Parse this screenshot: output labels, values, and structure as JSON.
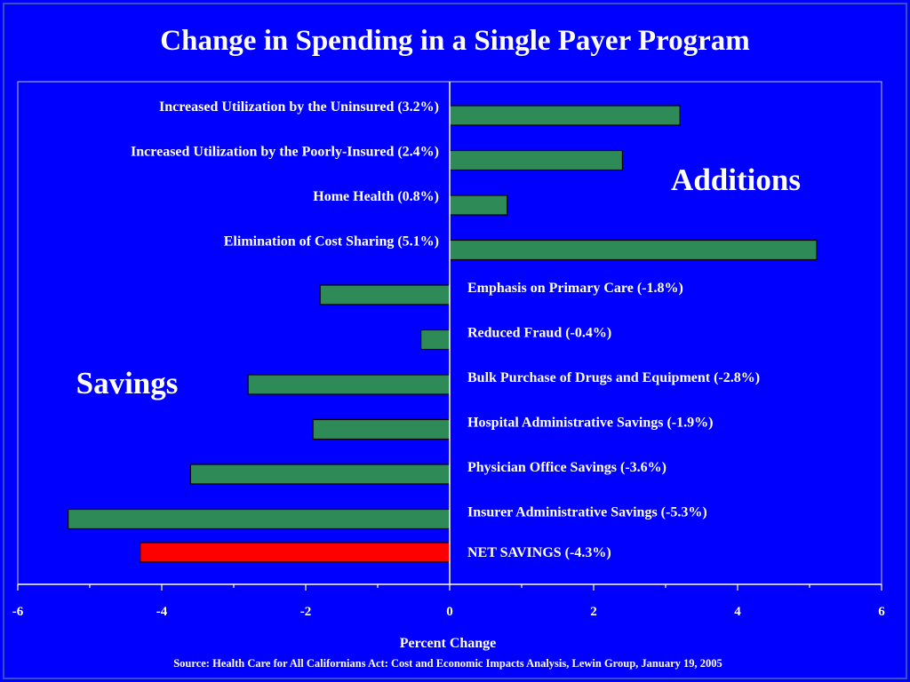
{
  "slide": {
    "source": "Source: Health Care for All Californians Act: Cost and Economic Impacts Analysis, Lewin Group, January 19, 2005"
  },
  "chart_data": {
    "type": "bar",
    "orientation": "horizontal",
    "title": "Change in Spending in a Single Payer Program",
    "xlabel": "Percent Change",
    "ylabel": "",
    "xlim": [
      -6,
      6
    ],
    "xticks": [
      -6,
      -4,
      -2,
      0,
      2,
      4,
      6
    ],
    "grid": false,
    "annotations": [
      "Additions",
      "Savings"
    ],
    "categories": [
      "Increased Utilization by the Uninsured (3.2%)",
      "Increased Utilization by the Poorly-Insured (2.4%)",
      "Home Health (0.8%)",
      "Elimination of Cost Sharing (5.1%)",
      "Emphasis on Primary Care (-1.8%)",
      "Reduced Fraud (-0.4%)",
      "Bulk Purchase of Drugs and Equipment (-2.8%)",
      "Hospital Administrative Savings (-1.9%)",
      "Physician Office Savings (-3.6%)",
      "Insurer Administrative Savings (-5.3%)",
      "NET SAVINGS (-4.3%)"
    ],
    "values": [
      3.2,
      2.4,
      0.8,
      5.1,
      -1.8,
      -0.4,
      -2.8,
      -1.9,
      -3.6,
      -5.3,
      -4.3
    ],
    "colors": {
      "background": "#0000ff",
      "bar": "#2e8b57",
      "net_bar": "#ff0000",
      "text": "#ffffff"
    }
  }
}
